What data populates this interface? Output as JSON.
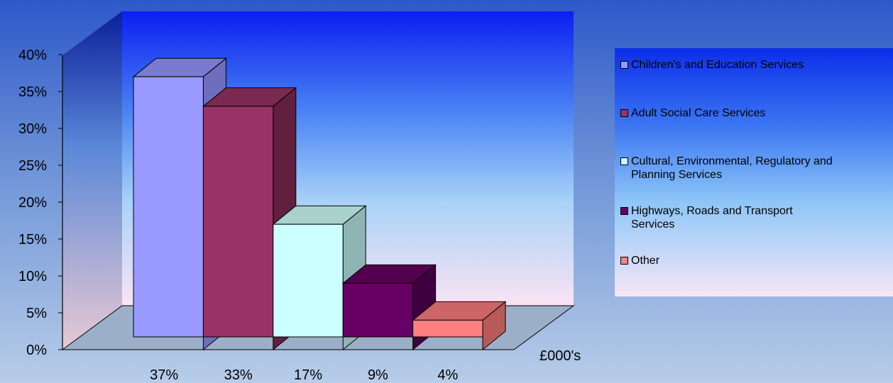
{
  "chart_data": {
    "type": "bar",
    "categories": [
      "Children's and Education Services",
      "Adult Social Care Services",
      "Cultural, Environmental, Regulatory and\nPlanning Services",
      "Highways, Roads and Transport\nServices",
      "Other"
    ],
    "values": [
      37,
      33,
      17,
      9,
      4
    ],
    "value_unit": "%",
    "data_labels": [
      "37%",
      "33%",
      "17%",
      "9%",
      "4%"
    ],
    "yticks": [
      "0%",
      "5%",
      "10%",
      "15%",
      "20%",
      "25%",
      "30%",
      "35%",
      "40%"
    ],
    "ylim": [
      0,
      40
    ],
    "xlabel": "£000's",
    "legend_position": "right",
    "three_d": true,
    "colors": [
      "#9999FF",
      "#993366",
      "#CCFFFF",
      "#660066",
      "#FF8080"
    ],
    "side_colors": [
      "#6e6ebc",
      "#62203f",
      "#8fb4b4",
      "#400040",
      "#b85a5a"
    ],
    "top_colors": [
      "#7a7ad0",
      "#7a2a50",
      "#a9d2cc",
      "#52004f",
      "#cc6666"
    ]
  }
}
